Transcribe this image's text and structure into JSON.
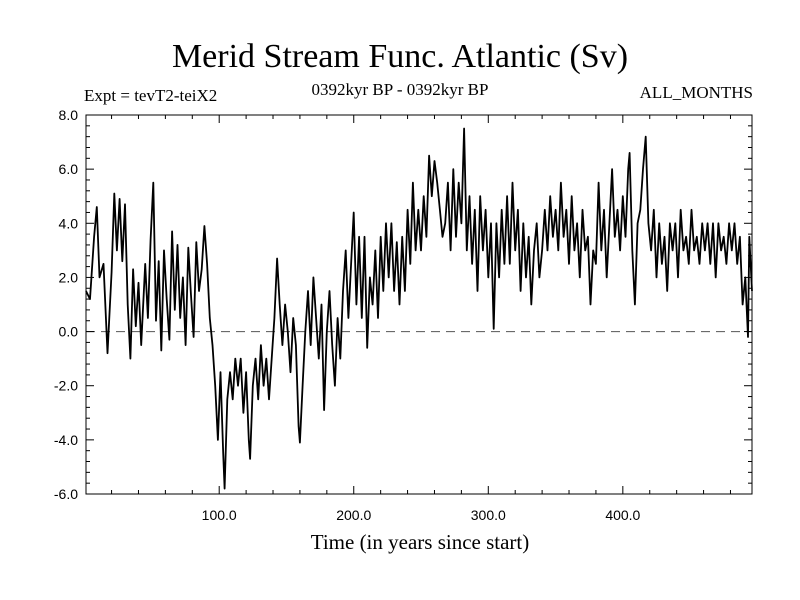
{
  "chart_data": {
    "type": "line",
    "title": "Merid Stream Func. Atlantic (Sv)",
    "left_label": "Expt = tevT2-teiX2",
    "center_label": "0392kyr BP - 0392kyr BP",
    "right_label": "ALL_MONTHS",
    "xlabel": "Time (in years since start)",
    "ylabel": "",
    "xlim": [
      1,
      496
    ],
    "ylim": [
      -6,
      8
    ],
    "xticks": [
      100,
      200,
      300,
      400
    ],
    "xtick_labels": [
      "100.0",
      "200.0",
      "300.0",
      "400.0"
    ],
    "yticks": [
      -6,
      -4,
      -2,
      0,
      2,
      4,
      6,
      8
    ],
    "ytick_labels": [
      "-6.0",
      "-4.0",
      "-2.0",
      "0.0",
      "2.0",
      "4.0",
      "6.0",
      "8.0"
    ],
    "reference_line": {
      "y": 0,
      "style": "dashed"
    },
    "grid": false,
    "series": [
      {
        "anchors": [
          [
            1,
            1.5
          ],
          [
            4,
            1.2
          ],
          [
            7,
            3.5
          ],
          [
            9,
            4.6
          ],
          [
            11,
            2.0
          ],
          [
            14,
            2.5
          ],
          [
            17,
            -0.8
          ],
          [
            20,
            2.2
          ],
          [
            22,
            5.1
          ],
          [
            24,
            3.0
          ],
          [
            26,
            4.9
          ],
          [
            28,
            2.6
          ],
          [
            30,
            4.7
          ],
          [
            32,
            1.0
          ],
          [
            34,
            -1.0
          ],
          [
            36,
            2.3
          ],
          [
            38,
            0.2
          ],
          [
            40,
            1.8
          ],
          [
            42,
            -0.5
          ],
          [
            45,
            2.5
          ],
          [
            47,
            0.5
          ],
          [
            49,
            3.4
          ],
          [
            51,
            5.5
          ],
          [
            53,
            0.4
          ],
          [
            55,
            2.6
          ],
          [
            57,
            -0.7
          ],
          [
            59,
            3.0
          ],
          [
            61,
            1.2
          ],
          [
            63,
            -0.3
          ],
          [
            65,
            3.7
          ],
          [
            67,
            0.8
          ],
          [
            69,
            3.2
          ],
          [
            71,
            0.5
          ],
          [
            73,
            2.0
          ],
          [
            75,
            -0.5
          ],
          [
            77,
            3.1
          ],
          [
            79,
            1.4
          ],
          [
            81,
            -0.2
          ],
          [
            83,
            3.3
          ],
          [
            85,
            1.5
          ],
          [
            87,
            2.3
          ],
          [
            89,
            3.9
          ],
          [
            91,
            2.5
          ],
          [
            93,
            0.5
          ],
          [
            95,
            -0.5
          ],
          [
            97,
            -2.0
          ],
          [
            99,
            -4.0
          ],
          [
            101,
            -1.5
          ],
          [
            103,
            -4.5
          ],
          [
            104,
            -5.8
          ],
          [
            106,
            -2.5
          ],
          [
            108,
            -1.5
          ],
          [
            110,
            -2.5
          ],
          [
            112,
            -1.0
          ],
          [
            114,
            -2.0
          ],
          [
            116,
            -1.0
          ],
          [
            118,
            -3.0
          ],
          [
            120,
            -1.5
          ],
          [
            122,
            -4.0
          ],
          [
            123,
            -4.7
          ],
          [
            125,
            -2.0
          ],
          [
            127,
            -1.0
          ],
          [
            129,
            -2.5
          ],
          [
            131,
            -0.5
          ],
          [
            133,
            -2.0
          ],
          [
            135,
            -1.0
          ],
          [
            137,
            -2.5
          ],
          [
            139,
            -1.0
          ],
          [
            141,
            0.5
          ],
          [
            143,
            2.7
          ],
          [
            145,
            1.0
          ],
          [
            147,
            -0.5
          ],
          [
            149,
            1.0
          ],
          [
            151,
            0.0
          ],
          [
            153,
            -1.5
          ],
          [
            155,
            0.5
          ],
          [
            157,
            -0.5
          ],
          [
            159,
            -3.5
          ],
          [
            160,
            -4.1
          ],
          [
            162,
            -2.0
          ],
          [
            164,
            0.0
          ],
          [
            166,
            1.5
          ],
          [
            168,
            -0.5
          ],
          [
            170,
            2.0
          ],
          [
            172,
            0.5
          ],
          [
            174,
            -1.0
          ],
          [
            176,
            1.0
          ],
          [
            178,
            -2.9
          ],
          [
            180,
            0.0
          ],
          [
            182,
            1.5
          ],
          [
            184,
            -0.5
          ],
          [
            186,
            -2.0
          ],
          [
            188,
            0.5
          ],
          [
            190,
            -1.0
          ],
          [
            192,
            1.5
          ],
          [
            194,
            3.0
          ],
          [
            196,
            0.5
          ],
          [
            198,
            2.5
          ],
          [
            200,
            4.4
          ],
          [
            202,
            1.0
          ],
          [
            204,
            3.5
          ],
          [
            206,
            0.5
          ],
          [
            208,
            3.5
          ],
          [
            210,
            -0.6
          ],
          [
            212,
            2.0
          ],
          [
            214,
            1.0
          ],
          [
            216,
            3.0
          ],
          [
            218,
            0.5
          ],
          [
            220,
            3.5
          ],
          [
            222,
            1.5
          ],
          [
            224,
            4.0
          ],
          [
            226,
            2.0
          ],
          [
            228,
            4.0
          ],
          [
            230,
            1.5
          ],
          [
            232,
            3.3
          ],
          [
            234,
            1.0
          ],
          [
            236,
            3.5
          ],
          [
            238,
            1.5
          ],
          [
            240,
            4.5
          ],
          [
            242,
            2.5
          ],
          [
            244,
            5.5
          ],
          [
            246,
            3.0
          ],
          [
            248,
            4.5
          ],
          [
            250,
            3.0
          ],
          [
            252,
            5.0
          ],
          [
            254,
            3.5
          ],
          [
            256,
            6.5
          ],
          [
            258,
            5.0
          ],
          [
            260,
            6.3
          ],
          [
            262,
            5.5
          ],
          [
            264,
            4.5
          ],
          [
            266,
            3.5
          ],
          [
            268,
            4.0
          ],
          [
            270,
            5.5
          ],
          [
            272,
            3.0
          ],
          [
            274,
            6.0
          ],
          [
            276,
            3.5
          ],
          [
            278,
            5.5
          ],
          [
            280,
            4.0
          ],
          [
            282,
            7.5
          ],
          [
            284,
            3.0
          ],
          [
            286,
            5.0
          ],
          [
            288,
            2.5
          ],
          [
            290,
            4.5
          ],
          [
            292,
            1.5
          ],
          [
            294,
            5.0
          ],
          [
            296,
            3.0
          ],
          [
            298,
            4.5
          ],
          [
            300,
            2.0
          ],
          [
            302,
            4.0
          ],
          [
            304,
            0.1
          ],
          [
            306,
            4.0
          ],
          [
            308,
            2.0
          ],
          [
            310,
            4.5
          ],
          [
            312,
            2.5
          ],
          [
            314,
            5.0
          ],
          [
            316,
            2.5
          ],
          [
            318,
            5.5
          ],
          [
            320,
            3.0
          ],
          [
            322,
            4.5
          ],
          [
            324,
            1.5
          ],
          [
            326,
            4.0
          ],
          [
            328,
            2.0
          ],
          [
            330,
            3.5
          ],
          [
            332,
            1.0
          ],
          [
            334,
            3.0
          ],
          [
            336,
            4.0
          ],
          [
            338,
            2.0
          ],
          [
            340,
            3.0
          ],
          [
            342,
            4.5
          ],
          [
            344,
            3.0
          ],
          [
            346,
            5.0
          ],
          [
            348,
            3.5
          ],
          [
            350,
            4.5
          ],
          [
            352,
            3.0
          ],
          [
            354,
            5.5
          ],
          [
            356,
            3.5
          ],
          [
            358,
            4.5
          ],
          [
            360,
            2.5
          ],
          [
            362,
            5.0
          ],
          [
            364,
            3.0
          ],
          [
            366,
            4.0
          ],
          [
            368,
            2.0
          ],
          [
            370,
            4.5
          ],
          [
            372,
            3.0
          ],
          [
            374,
            3.5
          ],
          [
            376,
            1.0
          ],
          [
            378,
            3.0
          ],
          [
            380,
            2.5
          ],
          [
            382,
            5.5
          ],
          [
            384,
            3.0
          ],
          [
            386,
            4.5
          ],
          [
            388,
            2.0
          ],
          [
            390,
            4.0
          ],
          [
            392,
            6.0
          ],
          [
            394,
            3.5
          ],
          [
            396,
            4.5
          ],
          [
            398,
            3.0
          ],
          [
            400,
            5.0
          ],
          [
            402,
            3.5
          ],
          [
            404,
            6.0
          ],
          [
            405,
            6.6
          ],
          [
            407,
            3.0
          ],
          [
            409,
            1.0
          ],
          [
            411,
            4.0
          ],
          [
            413,
            4.5
          ],
          [
            415,
            6.0
          ],
          [
            417,
            7.2
          ],
          [
            419,
            4.0
          ],
          [
            421,
            3.0
          ],
          [
            423,
            4.5
          ],
          [
            425,
            2.0
          ],
          [
            427,
            4.0
          ],
          [
            429,
            2.5
          ],
          [
            431,
            3.5
          ],
          [
            433,
            1.5
          ],
          [
            435,
            4.0
          ],
          [
            437,
            3.0
          ],
          [
            439,
            4.0
          ],
          [
            441,
            2.0
          ],
          [
            443,
            4.5
          ],
          [
            445,
            3.0
          ],
          [
            447,
            3.5
          ],
          [
            449,
            2.5
          ],
          [
            451,
            4.5
          ],
          [
            453,
            3.0
          ],
          [
            455,
            3.5
          ],
          [
            457,
            2.5
          ],
          [
            459,
            4.0
          ],
          [
            461,
            3.0
          ],
          [
            463,
            4.0
          ],
          [
            465,
            2.5
          ],
          [
            467,
            4.0
          ],
          [
            469,
            2.0
          ],
          [
            471,
            4.0
          ],
          [
            473,
            3.0
          ],
          [
            475,
            3.5
          ],
          [
            477,
            2.5
          ],
          [
            479,
            4.0
          ],
          [
            481,
            3.0
          ],
          [
            483,
            4.0
          ],
          [
            485,
            2.5
          ],
          [
            487,
            3.5
          ],
          [
            489,
            1.0
          ],
          [
            491,
            2.0
          ],
          [
            493,
            -0.2
          ],
          [
            494,
            3.5
          ],
          [
            496,
            1.5
          ]
        ]
      }
    ]
  }
}
